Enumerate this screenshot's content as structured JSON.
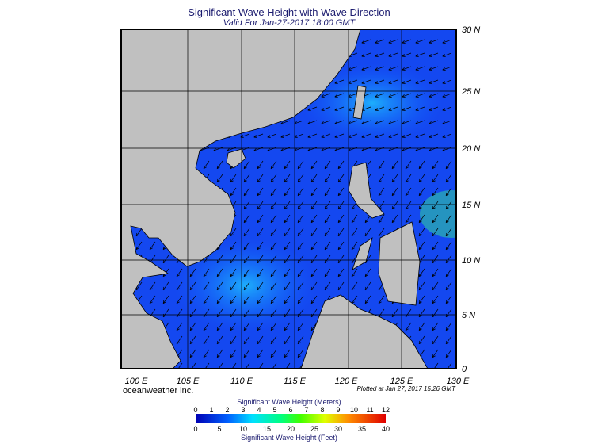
{
  "map": {
    "title": "Significant Wave Height with Wave Direction",
    "subtitle": "Valid For Jan-27-2017 18:00 GMT",
    "lon_labels": [
      "100 E",
      "105 E",
      "110 E",
      "115 E",
      "120 E",
      "125 E",
      "130 E"
    ],
    "lat_labels": [
      "30 N",
      "25 N",
      "20 N",
      "15 N",
      "10 N",
      "5 N",
      "0"
    ]
  },
  "footer": {
    "company": "oceanweather inc.",
    "plotted": "Plotted at Jan 27, 2017 15:26 GMT"
  },
  "legend": {
    "title_top": "Significant Wave Height (Meters)",
    "meters": [
      "0",
      "1",
      "2",
      "3",
      "4",
      "5",
      "6",
      "7",
      "8",
      "9",
      "10",
      "11",
      "12"
    ],
    "feet": [
      "0",
      "5",
      "10",
      "15",
      "20",
      "25",
      "30",
      "35",
      "40"
    ],
    "title_bottom": "Significant Wave Height (Feet)"
  }
}
